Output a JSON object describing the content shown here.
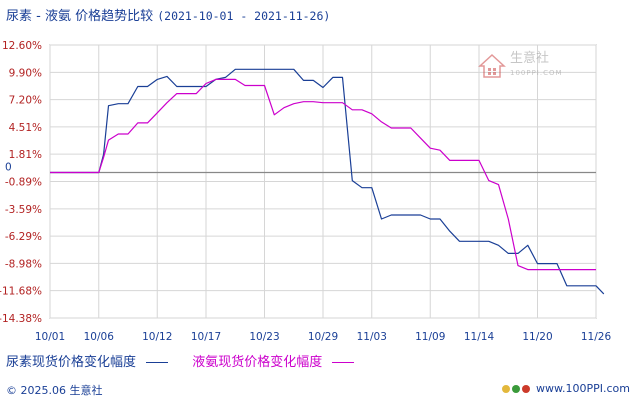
{
  "title": {
    "main": "尿素 - 液氨 价格趋势比较",
    "dates": "(2021-10-01 - 2021-11-26)"
  },
  "watermark": {
    "brand": "生意社",
    "site": "100PPI.COM"
  },
  "footer": {
    "copyright": "© 2025.06 生意社",
    "site": "www.100PPI.com"
  },
  "colors": {
    "series1": "#1a3f96",
    "series2": "#cc00cc",
    "zero_line": "#888888",
    "axis_text_red": "#b22222"
  },
  "chart_data": {
    "type": "line",
    "title": "尿素 - 液氨 价格趋势比较",
    "ylim": [
      -14.38,
      12.6
    ],
    "y_ticks": [
      "12.60%",
      "9.90%",
      "7.20%",
      "4.51%",
      "1.81%",
      "-0.89%",
      "-3.59%",
      "-6.29%",
      "-8.98%",
      "-11.68%",
      "-14.38%"
    ],
    "y_tick_values": [
      12.6,
      9.9,
      7.2,
      4.51,
      1.81,
      -0.89,
      -3.59,
      -6.29,
      -8.98,
      -11.68,
      -14.38
    ],
    "zero_label": "0",
    "xlim": [
      0,
      56
    ],
    "x_ticks": [
      "10/01",
      "10/06",
      "10/12",
      "10/17",
      "10/23",
      "10/29",
      "11/03",
      "11/09",
      "11/14",
      "11/20",
      "11/26"
    ],
    "x_tick_values": [
      0,
      5,
      11,
      16,
      22,
      28,
      33,
      39,
      44,
      50,
      56
    ],
    "grid": true,
    "legend_position": "bottom-left",
    "series": [
      {
        "name": "尿素现货价格变化幅度",
        "points": [
          [
            0,
            0
          ],
          [
            1,
            0
          ],
          [
            2,
            0
          ],
          [
            3,
            0
          ],
          [
            4,
            0
          ],
          [
            5,
            0
          ],
          [
            5.5,
            1.8
          ],
          [
            6,
            6.6
          ],
          [
            7,
            6.8
          ],
          [
            8,
            6.8
          ],
          [
            9,
            8.5
          ],
          [
            10,
            8.5
          ],
          [
            11,
            9.2
          ],
          [
            12,
            9.5
          ],
          [
            13,
            8.5
          ],
          [
            14,
            8.5
          ],
          [
            15,
            8.5
          ],
          [
            16,
            8.5
          ],
          [
            17,
            9.2
          ],
          [
            18,
            9.4
          ],
          [
            19,
            10.2
          ],
          [
            20,
            10.2
          ],
          [
            21,
            10.2
          ],
          [
            22,
            10.2
          ],
          [
            23,
            10.2
          ],
          [
            24,
            10.2
          ],
          [
            25,
            10.2
          ],
          [
            26,
            9.1
          ],
          [
            27,
            9.1
          ],
          [
            28,
            8.4
          ],
          [
            29,
            9.4
          ],
          [
            30,
            9.4
          ],
          [
            31,
            -0.8
          ],
          [
            32,
            -1.5
          ],
          [
            33,
            -1.5
          ],
          [
            34,
            -4.6
          ],
          [
            35,
            -4.2
          ],
          [
            36,
            -4.2
          ],
          [
            37,
            -4.2
          ],
          [
            38,
            -4.2
          ],
          [
            39,
            -4.6
          ],
          [
            40,
            -4.6
          ],
          [
            41,
            -5.8
          ],
          [
            42,
            -6.8
          ],
          [
            43,
            -6.8
          ],
          [
            44,
            -6.8
          ],
          [
            45,
            -6.8
          ],
          [
            46,
            -7.2
          ],
          [
            47,
            -8.0
          ],
          [
            48,
            -8.0
          ],
          [
            49,
            -7.2
          ],
          [
            50,
            -9.0
          ],
          [
            51,
            -9.0
          ],
          [
            52,
            -9.0
          ],
          [
            53,
            -11.2
          ],
          [
            54,
            -11.2
          ],
          [
            55,
            -11.2
          ],
          [
            56,
            -11.2
          ],
          [
            56.8,
            -12.0
          ]
        ]
      },
      {
        "name": "液氨现货价格变化幅度",
        "points": [
          [
            0,
            0
          ],
          [
            1,
            0
          ],
          [
            2,
            0
          ],
          [
            3,
            0
          ],
          [
            4,
            0
          ],
          [
            5,
            0
          ],
          [
            5.5,
            1.5
          ],
          [
            6,
            3.2
          ],
          [
            7,
            3.8
          ],
          [
            8,
            3.8
          ],
          [
            9,
            4.9
          ],
          [
            10,
            4.9
          ],
          [
            11,
            5.9
          ],
          [
            12,
            6.9
          ],
          [
            13,
            7.8
          ],
          [
            14,
            7.8
          ],
          [
            15,
            7.8
          ],
          [
            16,
            8.8
          ],
          [
            17,
            9.2
          ],
          [
            18,
            9.2
          ],
          [
            19,
            9.2
          ],
          [
            20,
            8.6
          ],
          [
            21,
            8.6
          ],
          [
            22,
            8.6
          ],
          [
            23,
            5.7
          ],
          [
            24,
            6.4
          ],
          [
            25,
            6.8
          ],
          [
            26,
            7.0
          ],
          [
            27,
            7.0
          ],
          [
            28,
            6.9
          ],
          [
            29,
            6.9
          ],
          [
            30,
            6.9
          ],
          [
            31,
            6.2
          ],
          [
            32,
            6.2
          ],
          [
            33,
            5.8
          ],
          [
            34,
            5.0
          ],
          [
            35,
            4.4
          ],
          [
            36,
            4.4
          ],
          [
            37,
            4.4
          ],
          [
            38,
            3.4
          ],
          [
            39,
            2.4
          ],
          [
            40,
            2.2
          ],
          [
            41,
            1.2
          ],
          [
            42,
            1.2
          ],
          [
            43,
            1.2
          ],
          [
            44,
            1.2
          ],
          [
            45,
            -0.8
          ],
          [
            46,
            -1.2
          ],
          [
            47,
            -4.6
          ],
          [
            48,
            -9.2
          ],
          [
            49,
            -9.6
          ],
          [
            50,
            -9.6
          ],
          [
            51,
            -9.6
          ],
          [
            52,
            -9.6
          ],
          [
            53,
            -9.6
          ],
          [
            54,
            -9.6
          ],
          [
            55,
            -9.6
          ],
          [
            56,
            -9.6
          ]
        ]
      }
    ]
  },
  "legend": {
    "items": [
      {
        "label": "尿素现货价格变化幅度"
      },
      {
        "label": "液氨现货价格变化幅度"
      }
    ]
  }
}
